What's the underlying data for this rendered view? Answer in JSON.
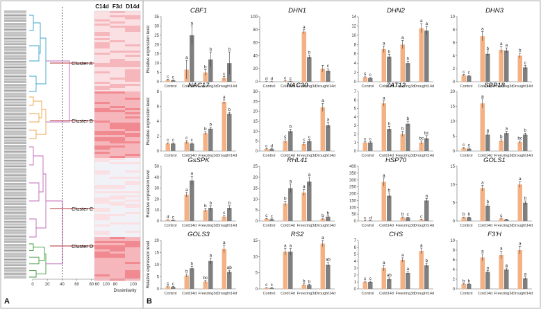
{
  "panel_labels": {
    "a": "A",
    "b": "B"
  },
  "colors": {
    "cold_bar": "#f4b183",
    "dark_bar": "#7f7f7f",
    "clusterA": "#3aa6c8",
    "clusterB": "#f0a34a",
    "clusterC": "#c068b8",
    "clusterD": "#3a9a3a",
    "heat_dark": "#f08a90",
    "heat_mid": "#f6b7bc",
    "heat_light": "#fbe0e3",
    "heat_pale": "#f1f1f8"
  },
  "dendrogram": {
    "x_ticks": [
      "0",
      "20",
      "40",
      "60",
      "80",
      "100"
    ],
    "xlabel": "Dissimilarity",
    "heatmap_columns": [
      "C14d",
      "F3d",
      "D14d"
    ],
    "clusters": [
      "Cluster A",
      "Cluster B",
      "Cluster C",
      "Cluster D"
    ],
    "cut_line": 40
  },
  "chart_data": {
    "type": "bar",
    "ylabel": "Relative expression level",
    "categories": [
      "Control",
      "Cold14d",
      "Freezing3d",
      "Drought14d"
    ],
    "panels": [
      {
        "gene": "CBF1",
        "ylim": [
          0,
          35
        ],
        "ticks": [
          0,
          5,
          10,
          15,
          20,
          25,
          30,
          35
        ],
        "series": [
          {
            "values": [
              1,
              6.5,
              5,
              2
            ],
            "err": [
              0.3,
              5,
              1.5,
              0.8
            ],
            "sig": [
              "c",
              "a",
              "b",
              "c"
            ]
          },
          {
            "values": [
              0.8,
              25,
              12,
              10
            ],
            "err": [
              0.2,
              5,
              4,
              6
            ],
            "sig": [
              "c",
              "a",
              "b",
              "b"
            ]
          }
        ]
      },
      {
        "gene": "DHN1",
        "ylim": [
          0,
          100
        ],
        "ticks": [
          0,
          20,
          40,
          60,
          80,
          100
        ],
        "series": [
          {
            "values": [
              0.3,
              1,
              77,
              20
            ],
            "err": [
              0.1,
              0.5,
              3,
              5
            ],
            "sig": [
              "d",
              "c",
              "a",
              ""
            ]
          },
          {
            "values": [
              0.2,
              0.8,
              38,
              17
            ],
            "err": [
              0.1,
              0.3,
              3,
              3
            ],
            "sig": [
              "d",
              "c",
              "b",
              "c"
            ]
          }
        ]
      },
      {
        "gene": "DHN2",
        "ylim": [
          0,
          14
        ],
        "ticks": [
          0,
          2,
          4,
          6,
          8,
          10,
          12,
          14
        ],
        "series": [
          {
            "values": [
              1,
              7,
              8,
              11.5
            ],
            "err": [
              0.2,
              0.7,
              0.9,
              1
            ],
            "sig": [
              "c",
              "a",
              "a",
              "a"
            ]
          },
          {
            "values": [
              0.8,
              5.4,
              4,
              11
            ],
            "err": [
              0.1,
              0.5,
              0.4,
              0.9
            ],
            "sig": [
              "c",
              "b",
              "b",
              "a"
            ]
          }
        ]
      },
      {
        "gene": "DHN3",
        "ylim": [
          0,
          10
        ],
        "ticks": [
          0,
          2,
          4,
          6,
          8,
          10
        ],
        "series": [
          {
            "values": [
              1,
              7,
              4.9,
              4
            ],
            "err": [
              0.1,
              0.7,
              0.5,
              0.4
            ],
            "sig": [
              "c",
              "a",
              "a",
              "b"
            ]
          },
          {
            "values": [
              0.9,
              4.3,
              4.8,
              2.2
            ],
            "err": [
              0.1,
              0.4,
              0.4,
              0.3
            ],
            "sig": [
              "c",
              "b",
              "a",
              "c"
            ]
          }
        ]
      },
      {
        "gene": "NAC17",
        "ylim": [
          0,
          8
        ],
        "ticks": [
          0,
          2,
          4,
          6,
          8
        ],
        "series": [
          {
            "values": [
              1,
              1.2,
              2.4,
              6.6
            ],
            "err": [
              0.1,
              0.2,
              0.2,
              0.3
            ],
            "sig": [
              "c",
              "c",
              "b",
              "a"
            ]
          },
          {
            "values": [
              1,
              1,
              3,
              5
            ],
            "err": [
              0.1,
              0.1,
              0.2,
              0.2
            ],
            "sig": [
              "c",
              "c",
              "b",
              "b"
            ]
          }
        ]
      },
      {
        "gene": "NAC30",
        "ylim": [
          0,
          30
        ],
        "ticks": [
          0,
          5,
          10,
          15,
          20,
          25,
          30
        ],
        "series": [
          {
            "values": [
              1,
              5,
              3.5,
              22
            ],
            "err": [
              0.2,
              1,
              0.8,
              2
            ],
            "sig": [
              "c",
              "c",
              "c",
              "a"
            ]
          },
          {
            "values": [
              1,
              10,
              5,
              13
            ],
            "err": [
              0.2,
              1,
              0.7,
              1.5
            ],
            "sig": [
              "d",
              "b",
              "c",
              "a"
            ]
          }
        ]
      },
      {
        "gene": "ZAT12",
        "ylim": [
          0,
          7
        ],
        "ticks": [
          0,
          1,
          2,
          3,
          4,
          5,
          6,
          7
        ],
        "series": [
          {
            "values": [
              1,
              5.6,
              2,
              1
            ],
            "err": [
              0.1,
              0.3,
              0.3,
              0.2
            ],
            "sig": [
              "c",
              "a",
              "b",
              "bc"
            ]
          },
          {
            "values": [
              1,
              2.6,
              3.2,
              1.5
            ],
            "err": [
              0.1,
              0.3,
              0.3,
              0.3
            ],
            "sig": [
              "c",
              "b",
              "b",
              "bc"
            ]
          }
        ]
      },
      {
        "gene": "SBP18",
        "ylim": [
          0,
          20
        ],
        "ticks": [
          0,
          5,
          10,
          15,
          20
        ],
        "series": [
          {
            "values": [
              1,
              16,
              3.5,
              3
            ],
            "err": [
              0.2,
              1.5,
              0.5,
              0.4
            ],
            "sig": [
              "c",
              "a",
              "b",
              "bc"
            ]
          },
          {
            "values": [
              0.8,
              5.5,
              6,
              5.5
            ],
            "err": [
              0.2,
              0.6,
              0.6,
              0.5
            ],
            "sig": [
              "c",
              "a",
              "a",
              "b"
            ]
          }
        ]
      },
      {
        "gene": "GsSPK",
        "ylim": [
          0,
          50
        ],
        "ticks": [
          0,
          10,
          20,
          30,
          40,
          50
        ],
        "series": [
          {
            "values": [
              1,
              24,
              10,
              4
            ],
            "err": [
              0.2,
              2,
              1.5,
              1
            ],
            "sig": [
              "d",
              "a",
              "b",
              "c"
            ]
          },
          {
            "values": [
              0.8,
              37,
              12,
              12
            ],
            "err": [
              0.2,
              4,
              2,
              2
            ],
            "sig": [
              "c",
              "a",
              "b",
              "b"
            ]
          }
        ]
      },
      {
        "gene": "RHL41",
        "ylim": [
          0,
          25
        ],
        "ticks": [
          0,
          5,
          10,
          15,
          20,
          25
        ],
        "series": [
          {
            "values": [
              1,
              8,
              13,
              1
            ],
            "err": [
              0.2,
              1,
              1.5,
              0.3
            ],
            "sig": [
              "c",
              "b",
              "a",
              "b"
            ]
          },
          {
            "values": [
              0.8,
              15,
              18,
              2
            ],
            "err": [
              0.2,
              2,
              2,
              0.4
            ],
            "sig": [
              "c",
              "a",
              "a",
              "b"
            ]
          }
        ]
      },
      {
        "gene": "HSP70",
        "ylim": [
          0,
          400
        ],
        "ticks": [
          0,
          50,
          100,
          150,
          200,
          250,
          300,
          350,
          400
        ],
        "series": [
          {
            "values": [
              2,
              285,
              25,
              10
            ],
            "err": [
              1,
              30,
              5,
              3
            ],
            "sig": [
              "c",
              "a",
              "b",
              "c"
            ]
          },
          {
            "values": [
              2,
              185,
              25,
              150
            ],
            "err": [
              1,
              20,
              4,
              15
            ],
            "sig": [
              "d",
              "b",
              "c",
              "a"
            ]
          }
        ]
      },
      {
        "gene": "GOLS1",
        "ylim": [
          0,
          15
        ],
        "ticks": [
          0,
          5,
          10,
          15
        ],
        "series": [
          {
            "values": [
              1,
              9,
              0.7,
              10
            ],
            "err": [
              0.1,
              0.8,
              0.1,
              0.8
            ],
            "sig": [
              "b",
              "a",
              "c",
              "a"
            ]
          },
          {
            "values": [
              1,
              4.2,
              0.4,
              5
            ],
            "err": [
              0.1,
              0.4,
              0.1,
              0.5
            ],
            "sig": [
              "b",
              "b",
              "",
              "b"
            ]
          }
        ]
      },
      {
        "gene": "GOLS3",
        "ylim": [
          0,
          20
        ],
        "ticks": [
          0,
          5,
          10,
          15,
          20
        ],
        "series": [
          {
            "values": [
              1,
              5.5,
              3,
              16.5
            ],
            "err": [
              0.2,
              0.6,
              0.5,
              1.5
            ],
            "sig": [
              "c",
              "b",
              "bc",
              "a"
            ]
          },
          {
            "values": [
              0.8,
              8.5,
              11.5,
              7
            ],
            "err": [
              0.2,
              0.8,
              1.2,
              0.7
            ],
            "sig": [
              "c",
              "b",
              "a",
              "ab"
            ]
          }
        ]
      },
      {
        "gene": "RS2",
        "ylim": [
          0,
          15
        ],
        "ticks": [
          0,
          5,
          10,
          15
        ],
        "series": [
          {
            "values": [
              0.3,
              11.5,
              1.3,
              14
            ],
            "err": [
              0.1,
              1,
              0.3,
              1
            ],
            "sig": [
              "c",
              "a",
              "b",
              "a"
            ]
          },
          {
            "values": [
              0.3,
              11.5,
              1.2,
              7.5
            ],
            "err": [
              0.1,
              1,
              0.2,
              0.7
            ],
            "sig": [
              "c",
              "a",
              "b",
              "ab"
            ]
          }
        ]
      },
      {
        "gene": "CHS",
        "ylim": [
          0,
          7
        ],
        "ticks": [
          0,
          1,
          2,
          3,
          4,
          5,
          6,
          7
        ],
        "series": [
          {
            "values": [
              1,
              3,
              4.2,
              5.5
            ],
            "err": [
              0.1,
              0.4,
              0.3,
              0.4
            ],
            "sig": [
              "c",
              "a",
              "a",
              "a"
            ]
          },
          {
            "values": [
              1,
              1.4,
              2.3,
              3.4
            ],
            "err": [
              0.1,
              0.2,
              0.2,
              0.3
            ],
            "sig": [
              "c",
              "ab",
              "a",
              "b"
            ]
          }
        ]
      },
      {
        "gene": "F3'H",
        "ylim": [
          0,
          10
        ],
        "ticks": [
          0,
          2,
          4,
          6,
          8,
          10
        ],
        "series": [
          {
            "values": [
              1,
              6.5,
              7,
              8
            ],
            "err": [
              0.1,
              0.7,
              0.8,
              0.8
            ],
            "sig": [
              "b",
              "a",
              "a",
              "a"
            ]
          },
          {
            "values": [
              1,
              3.5,
              4,
              2.2
            ],
            "err": [
              0.1,
              0.3,
              0.3,
              0.3
            ],
            "sig": [
              "b",
              "a",
              "a",
              "a"
            ]
          }
        ]
      }
    ]
  }
}
